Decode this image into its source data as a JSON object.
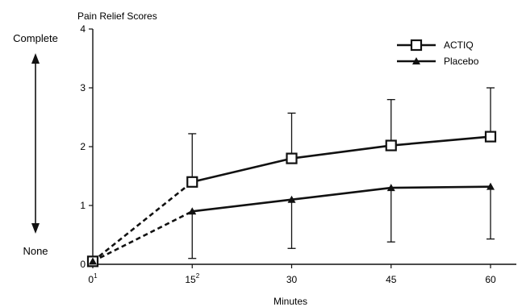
{
  "chart_data": {
    "type": "line",
    "title": "Pain Relief Scores",
    "xlabel": "Minutes",
    "ylabel": "",
    "x": [
      0,
      15,
      30,
      45,
      60
    ],
    "x_tick_labels": [
      "0",
      "15",
      "30",
      "45",
      "60"
    ],
    "x_tick_superscripts": [
      "1",
      "2",
      "",
      "",
      ""
    ],
    "xlim": [
      0,
      60
    ],
    "ylim": [
      0,
      4
    ],
    "y_ticks": [
      0,
      1,
      2,
      3,
      4
    ],
    "y_tick_labels": [
      "0",
      "1",
      "2",
      "3",
      "4"
    ],
    "scale_top_label": "Complete",
    "scale_bottom_label": "None",
    "grid": false,
    "legend_position": "top-right",
    "series": [
      {
        "name": "ACTIQ",
        "marker": "open-square",
        "values": [
          0.05,
          1.4,
          1.8,
          2.02,
          2.17
        ],
        "error_upper": [
          null,
          2.22,
          2.57,
          2.8,
          3.0
        ],
        "dashed_segments": [
          0
        ]
      },
      {
        "name": "Placebo",
        "marker": "filled-triangle",
        "values": [
          0.05,
          0.9,
          1.1,
          1.3,
          1.32
        ],
        "error_lower": [
          null,
          0.1,
          0.27,
          0.38,
          0.43
        ],
        "dashed_segments": [
          0
        ]
      }
    ],
    "colors": {
      "line": "#111111",
      "marker_fill_open": "#ffffff"
    }
  }
}
